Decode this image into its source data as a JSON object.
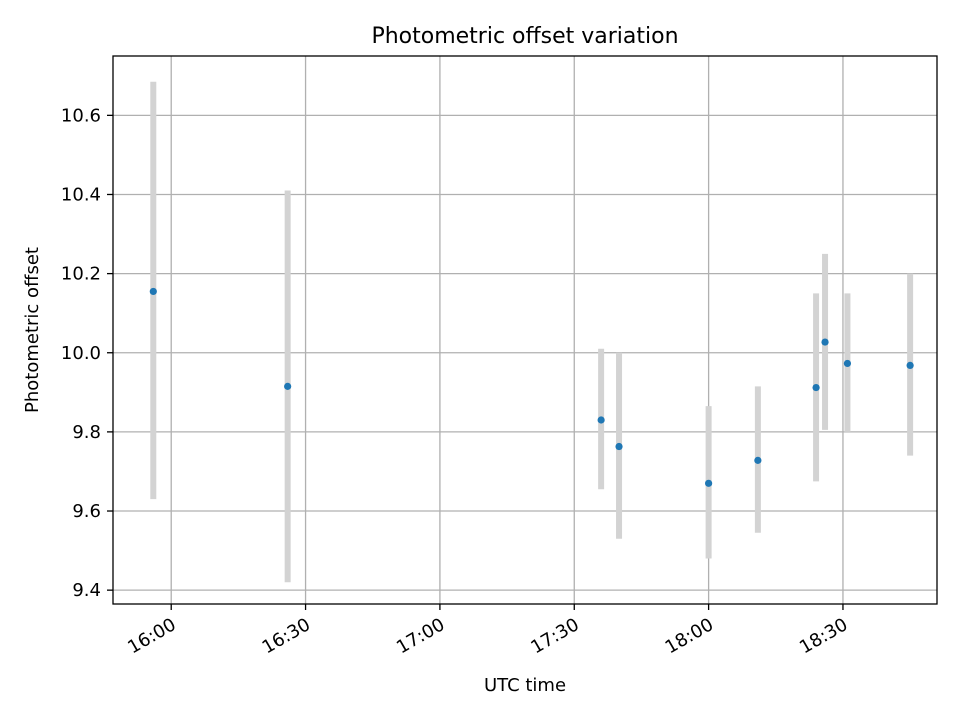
{
  "chart_data": {
    "type": "scatter",
    "title": "Photometric offset variation",
    "xlabel": "UTC time",
    "ylabel": "Photometric offset",
    "x_ticks": [
      "16:00",
      "16:30",
      "17:00",
      "17:30",
      "18:00",
      "18:30"
    ],
    "y_ticks": [
      "9.4",
      "9.6",
      "9.8",
      "10.0",
      "10.2",
      "10.4",
      "10.6"
    ],
    "xlim": [
      "15:47",
      "18:51"
    ],
    "ylim": [
      9.365,
      10.75
    ],
    "grid": true,
    "points": [
      {
        "x": "15:56",
        "y": 10.155,
        "yerr_low": 9.63,
        "yerr_high": 10.685
      },
      {
        "x": "16:26",
        "y": 9.915,
        "yerr_low": 9.42,
        "yerr_high": 10.41
      },
      {
        "x": "17:36",
        "y": 9.83,
        "yerr_low": 9.655,
        "yerr_high": 10.01
      },
      {
        "x": "17:40",
        "y": 9.763,
        "yerr_low": 9.53,
        "yerr_high": 10.0
      },
      {
        "x": "18:00",
        "y": 9.67,
        "yerr_low": 9.48,
        "yerr_high": 9.865
      },
      {
        "x": "18:11",
        "y": 9.728,
        "yerr_low": 9.545,
        "yerr_high": 9.915
      },
      {
        "x": "18:24",
        "y": 9.912,
        "yerr_low": 9.675,
        "yerr_high": 10.15
      },
      {
        "x": "18:26",
        "y": 10.027,
        "yerr_low": 9.805,
        "yerr_high": 10.25
      },
      {
        "x": "18:31",
        "y": 9.973,
        "yerr_low": 9.8,
        "yerr_high": 10.15
      },
      {
        "x": "18:45",
        "y": 9.968,
        "yerr_low": 9.74,
        "yerr_high": 10.2
      }
    ],
    "colors": {
      "point": "#1f77b4",
      "errorbar": "#d3d3d3",
      "grid": "#b0b0b0"
    }
  }
}
